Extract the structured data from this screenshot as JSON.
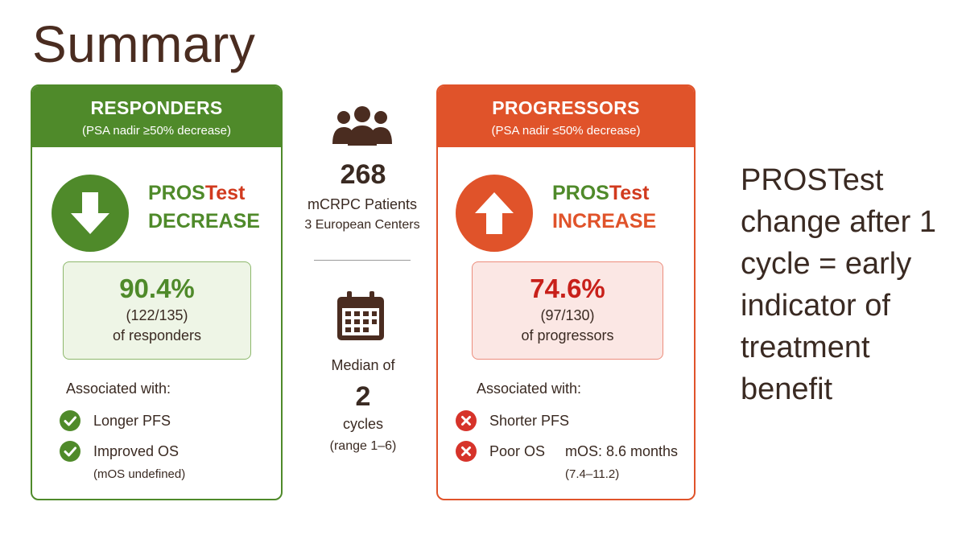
{
  "title": "Summary",
  "responders": {
    "header_title": "RESPONDERS",
    "header_subtitle": "(PSA nadir ≥50% decrease)",
    "arrow_icon": "arrow-down-icon",
    "label_pros": "PROS",
    "label_test": "Test",
    "label_direction": "DECREASE",
    "percent": "90.4%",
    "fraction": "(122/135)",
    "of_label": "of responders",
    "associated_label": "Associated with:",
    "items": [
      {
        "icon": "check-icon",
        "text": "Longer PFS"
      },
      {
        "icon": "check-icon",
        "text": "Improved OS"
      }
    ],
    "note": "(mOS undefined)",
    "color": "#4f8a2a"
  },
  "center": {
    "people_icon": "people-group-icon",
    "count": "268",
    "count_label": "mCRPC Patients",
    "centers": "3 European Centers",
    "calendar_icon": "calendar-icon",
    "median_label": "Median of",
    "median_value": "2",
    "median_unit": "cycles",
    "median_range": "(range 1–6)"
  },
  "progressors": {
    "header_title": "PROGRESSORS",
    "header_subtitle": "(PSA nadir ≤50% decrease)",
    "arrow_icon": "arrow-up-icon",
    "label_pros": "PROS",
    "label_test": "Test",
    "label_direction": "INCREASE",
    "percent": "74.6%",
    "fraction": "(97/130)",
    "of_label": "of progressors",
    "associated_label": "Associated with:",
    "items": [
      {
        "icon": "x-circle-icon",
        "text": "Shorter PFS"
      },
      {
        "icon": "x-circle-icon",
        "text": "Poor OS"
      }
    ],
    "mos": "mOS: 8.6 months",
    "mos_range": "(7.4–11.2)",
    "color": "#e0532a"
  },
  "conclusion": {
    "lines": [
      "PROSTest",
      "change after 1",
      "cycle = early",
      "indicator of",
      "treatment",
      "benefit"
    ]
  }
}
